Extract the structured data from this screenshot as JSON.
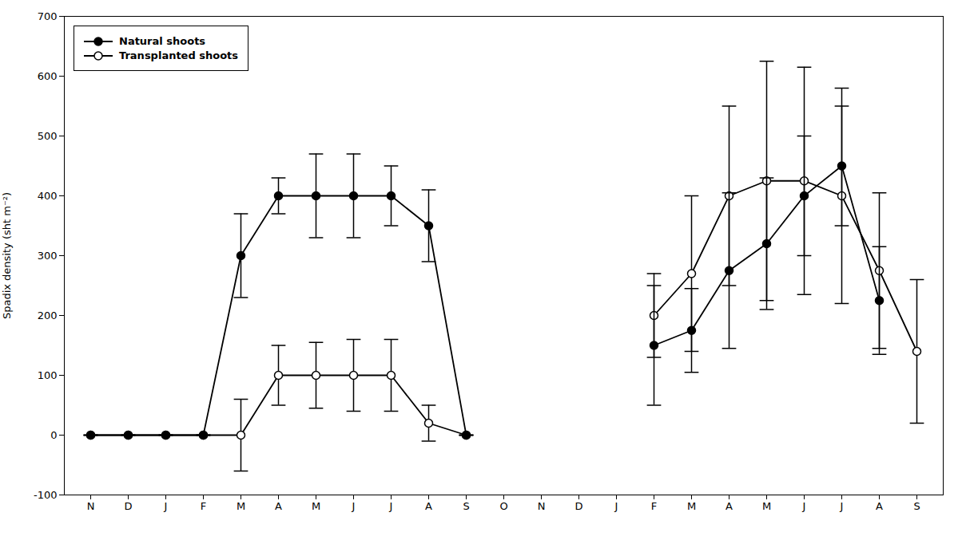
{
  "chart_data": {
    "type": "line",
    "categories": [
      "N",
      "D",
      "J",
      "F",
      "M",
      "A",
      "M",
      "J",
      "J",
      "A",
      "S",
      "O",
      "N",
      "D",
      "J",
      "F",
      "M",
      "A",
      "M",
      "J",
      "J",
      "A",
      "S"
    ],
    "series": [
      {
        "name": "Natural shoots",
        "color": "#000000",
        "marker": "filled_circle",
        "line_style": "solid",
        "values": [
          0,
          0,
          0,
          0,
          300,
          400,
          400,
          400,
          400,
          350,
          0,
          null,
          null,
          null,
          null,
          150,
          175,
          275,
          320,
          400,
          450,
          225,
          null
        ],
        "errors": [
          0,
          0,
          0,
          0,
          70,
          30,
          70,
          70,
          50,
          60,
          0,
          null,
          null,
          null,
          null,
          100,
          70,
          130,
          110,
          100,
          100,
          90,
          null
        ]
      },
      {
        "name": "Transplanted shoots",
        "color": "#000000",
        "marker": "open_circle",
        "line_style": "solid",
        "values": [
          0,
          0,
          0,
          0,
          0,
          100,
          100,
          100,
          100,
          20,
          0,
          null,
          null,
          null,
          null,
          200,
          270,
          400,
          425,
          425,
          400,
          275,
          140
        ],
        "errors": [
          0,
          0,
          0,
          0,
          60,
          50,
          55,
          60,
          60,
          30,
          0,
          null,
          null,
          null,
          null,
          70,
          130,
          150,
          200,
          190,
          180,
          130,
          120
        ]
      }
    ],
    "ylabel": "Spadix density (sht m⁻²)",
    "ylim": [
      -100,
      700
    ],
    "yticks": [
      -100,
      0,
      100,
      200,
      300,
      400,
      500,
      600,
      700
    ],
    "grid": false,
    "legend": "upper left"
  }
}
